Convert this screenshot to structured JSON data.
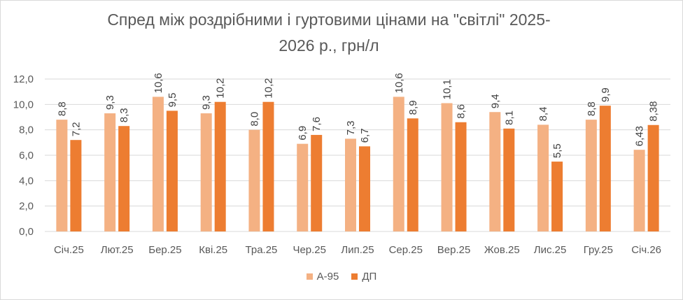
{
  "chart_data": {
    "type": "bar",
    "title_lines": [
      "Спред між роздрібними і гуртовими цінами на \"світлі\" 2025-",
      "2026 р., грн/л"
    ],
    "categories": [
      "Січ.25",
      "Лют.25",
      "Бер.25",
      "Кві.25",
      "Тра.25",
      "Чер.25",
      "Лип.25",
      "Сер.25",
      "Вер.25",
      "Жов.25",
      "Лис.25",
      "Гру.25",
      "Січ.26"
    ],
    "series": [
      {
        "name": "А-95",
        "color": "#f4b183",
        "values": [
          8.8,
          9.3,
          10.6,
          9.3,
          8.0,
          6.9,
          7.3,
          10.6,
          10.1,
          9.4,
          8.4,
          8.8,
          6.43
        ],
        "labels": [
          "8,8",
          "9,3",
          "10,6",
          "9,3",
          "8,0",
          "6,9",
          "7,3",
          "10,6",
          "10,1",
          "9,4",
          "8,4",
          "8,8",
          "6,43"
        ]
      },
      {
        "name": "ДП",
        "color": "#ed7d31",
        "values": [
          7.2,
          8.3,
          9.5,
          10.2,
          10.2,
          7.6,
          6.7,
          8.9,
          8.6,
          8.1,
          5.5,
          9.9,
          8.38
        ],
        "labels": [
          "7,2",
          "8,3",
          "9,5",
          "10,2",
          "10,2",
          "7,6",
          "6,7",
          "8,9",
          "8,6",
          "8,1",
          "5,5",
          "9,9",
          "8,38"
        ]
      }
    ],
    "ylim": [
      0,
      12
    ],
    "yticks": [
      "0,0",
      "2,0",
      "4,0",
      "6,0",
      "8,0",
      "10,0",
      "12,0"
    ],
    "grid": true,
    "legend_position": "bottom"
  }
}
